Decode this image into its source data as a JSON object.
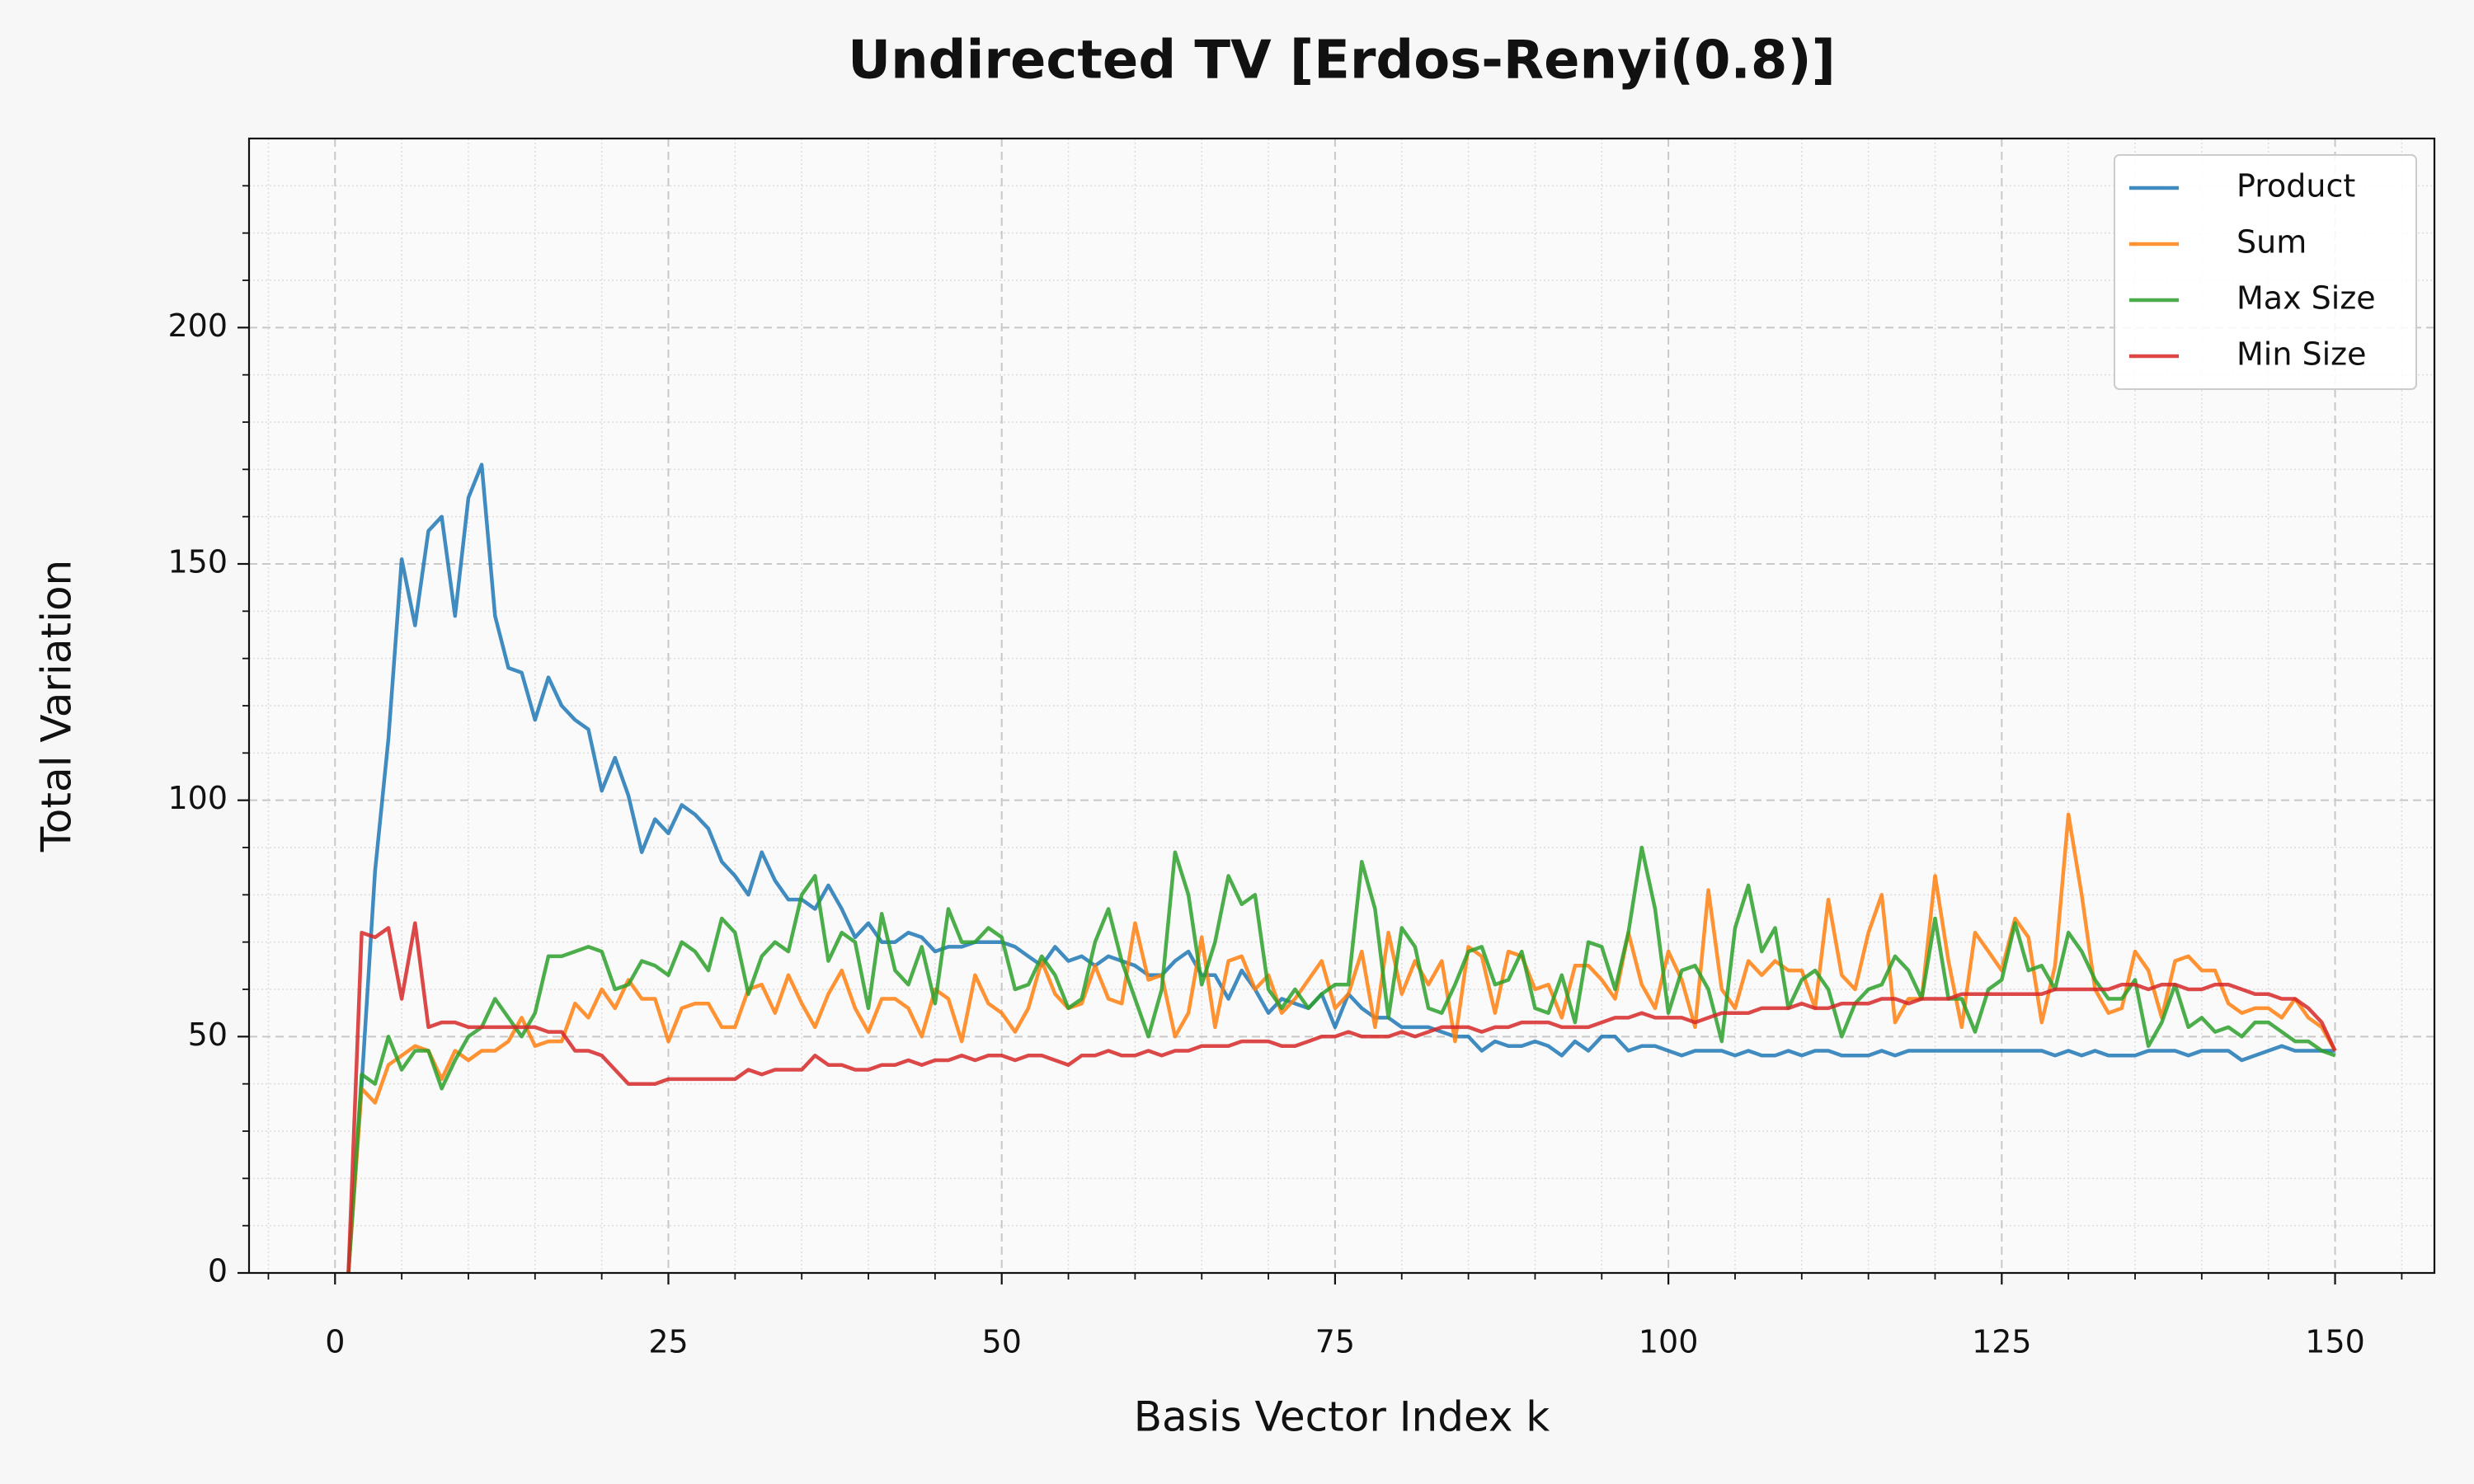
{
  "chart_data": {
    "type": "line",
    "title": "Undirected TV [Erdos-Renyi(0.8)]",
    "xlabel": "Basis Vector Index k",
    "ylabel": "Total Variation",
    "xlim": [
      -6.45,
      157.45
    ],
    "ylim": [
      0,
      240
    ],
    "xticks": [
      0,
      25,
      50,
      75,
      100,
      125,
      150
    ],
    "yticks": [
      0,
      50,
      100,
      150,
      200
    ],
    "xminorticks": [
      -5,
      5,
      10,
      15,
      20,
      30,
      35,
      40,
      45,
      55,
      60,
      65,
      70,
      80,
      85,
      90,
      95,
      105,
      110,
      115,
      120,
      130,
      135,
      140,
      145,
      155
    ],
    "yminorticks": [
      10,
      20,
      30,
      40,
      60,
      70,
      80,
      90,
      110,
      120,
      130,
      140,
      160,
      170,
      180,
      190,
      210,
      220,
      230
    ],
    "grid": true,
    "legend": "upper right",
    "x": [
      1,
      2,
      3,
      4,
      5,
      6,
      7,
      8,
      9,
      10,
      11,
      12,
      13,
      14,
      15,
      16,
      17,
      18,
      19,
      20,
      21,
      22,
      23,
      24,
      25,
      26,
      27,
      28,
      29,
      30,
      31,
      32,
      33,
      34,
      35,
      36,
      37,
      38,
      39,
      40,
      41,
      42,
      43,
      44,
      45,
      46,
      47,
      48,
      49,
      50,
      51,
      52,
      53,
      54,
      55,
      56,
      57,
      58,
      59,
      60,
      61,
      62,
      63,
      64,
      65,
      66,
      67,
      68,
      69,
      70,
      71,
      72,
      73,
      74,
      75,
      76,
      77,
      78,
      79,
      80,
      81,
      82,
      83,
      84,
      85,
      86,
      87,
      88,
      89,
      90,
      91,
      92,
      93,
      94,
      95,
      96,
      97,
      98,
      99,
      100,
      101,
      102,
      103,
      104,
      105,
      106,
      107,
      108,
      109,
      110,
      111,
      112,
      113,
      114,
      115,
      116,
      117,
      118,
      119,
      120,
      121,
      122,
      123,
      124,
      125,
      126,
      127,
      128,
      129,
      130,
      131,
      132,
      133,
      134,
      135,
      136,
      137,
      138,
      139,
      140,
      141,
      142,
      143,
      144,
      145,
      146,
      147,
      148,
      149,
      150
    ],
    "series": [
      {
        "name": "Product",
        "color": "#1f77b4",
        "values": [
          0,
          40,
          85,
          113,
          151,
          137,
          157,
          160,
          139,
          164,
          171,
          139,
          128,
          127,
          117,
          126,
          120,
          117,
          115,
          102,
          109,
          101,
          89,
          96,
          93,
          99,
          97,
          94,
          87,
          84,
          80,
          89,
          83,
          79,
          79,
          77,
          82,
          77,
          71,
          74,
          70,
          70,
          72,
          71,
          68,
          69,
          69,
          70,
          70,
          70,
          69,
          67,
          65,
          69,
          66,
          67,
          65,
          67,
          66,
          65,
          63,
          63,
          66,
          68,
          63,
          63,
          58,
          64,
          60,
          55,
          58,
          57,
          56,
          59,
          52,
          59,
          56,
          54,
          54,
          52,
          52,
          52,
          51,
          50,
          50,
          47,
          49,
          48,
          48,
          49,
          48,
          46,
          49,
          47,
          50,
          50,
          47,
          48,
          48,
          47,
          46,
          47,
          47,
          47,
          46,
          47,
          46,
          46,
          47,
          46,
          47,
          47,
          46,
          46,
          46,
          47,
          46,
          47,
          47,
          47,
          47,
          47,
          47,
          47,
          47,
          47,
          47,
          47,
          46,
          47,
          46,
          47,
          46,
          46,
          46,
          47,
          47,
          47,
          46,
          47,
          47,
          47,
          45,
          46,
          47,
          48,
          47,
          47,
          47,
          47
        ]
      },
      {
        "name": "Sum",
        "color": "#ff7f0e",
        "values": [
          0,
          39,
          36,
          44,
          46,
          48,
          47,
          41,
          47,
          45,
          47,
          47,
          49,
          54,
          48,
          49,
          49,
          57,
          54,
          60,
          56,
          62,
          58,
          58,
          49,
          56,
          57,
          57,
          52,
          52,
          60,
          61,
          55,
          63,
          57,
          52,
          59,
          64,
          56,
          51,
          58,
          58,
          56,
          50,
          60,
          58,
          49,
          63,
          57,
          55,
          51,
          56,
          66,
          59,
          56,
          57,
          65,
          58,
          57,
          74,
          62,
          63,
          50,
          55,
          71,
          52,
          66,
          67,
          60,
          63,
          55,
          58,
          62,
          66,
          56,
          59,
          68,
          52,
          72,
          59,
          66,
          61,
          66,
          49,
          69,
          67,
          55,
          68,
          67,
          60,
          61,
          54,
          65,
          65,
          62,
          58,
          72,
          61,
          56,
          68,
          62,
          52,
          81,
          60,
          56,
          66,
          63,
          66,
          64,
          64,
          56,
          79,
          63,
          60,
          72,
          80,
          53,
          58,
          58,
          84,
          66,
          52,
          72,
          68,
          64,
          75,
          71,
          53,
          65,
          97,
          80,
          60,
          55,
          56,
          68,
          64,
          54,
          66,
          67,
          64,
          64,
          57,
          55,
          56,
          56,
          54,
          58,
          54,
          52,
          47
        ]
      },
      {
        "name": "Max Size",
        "color": "#2ca02c",
        "values": [
          0,
          42,
          40,
          50,
          43,
          47,
          47,
          39,
          45,
          50,
          52,
          58,
          54,
          50,
          55,
          67,
          67,
          68,
          69,
          68,
          60,
          61,
          66,
          65,
          63,
          70,
          68,
          64,
          75,
          72,
          59,
          67,
          70,
          68,
          80,
          84,
          66,
          72,
          70,
          56,
          76,
          64,
          61,
          69,
          57,
          77,
          70,
          70,
          73,
          71,
          60,
          61,
          67,
          63,
          56,
          58,
          70,
          77,
          66,
          58,
          50,
          60,
          89,
          80,
          61,
          70,
          84,
          78,
          80,
          60,
          56,
          60,
          56,
          59,
          61,
          61,
          87,
          77,
          54,
          73,
          69,
          56,
          55,
          61,
          68,
          69,
          61,
          62,
          68,
          56,
          55,
          63,
          53,
          70,
          69,
          60,
          72,
          90,
          77,
          55,
          64,
          65,
          60,
          49,
          73,
          82,
          68,
          73,
          56,
          62,
          64,
          60,
          50,
          57,
          60,
          61,
          67,
          64,
          58,
          75,
          58,
          58,
          51,
          60,
          62,
          74,
          64,
          65,
          60,
          72,
          68,
          62,
          58,
          58,
          62,
          48,
          53,
          61,
          52,
          54,
          51,
          52,
          50,
          53,
          53,
          51,
          49,
          49,
          47,
          46
        ]
      },
      {
        "name": "Min Size",
        "color": "#d62728",
        "values": [
          0,
          72,
          71,
          73,
          58,
          74,
          52,
          53,
          53,
          52,
          52,
          52,
          52,
          52,
          52,
          51,
          51,
          47,
          47,
          46,
          43,
          40,
          40,
          40,
          41,
          41,
          41,
          41,
          41,
          41,
          43,
          42,
          43,
          43,
          43,
          46,
          44,
          44,
          43,
          43,
          44,
          44,
          45,
          44,
          45,
          45,
          46,
          45,
          46,
          46,
          45,
          46,
          46,
          45,
          44,
          46,
          46,
          47,
          46,
          46,
          47,
          46,
          47,
          47,
          48,
          48,
          48,
          49,
          49,
          49,
          48,
          48,
          49,
          50,
          50,
          51,
          50,
          50,
          50,
          51,
          50,
          51,
          52,
          52,
          52,
          51,
          52,
          52,
          53,
          53,
          53,
          52,
          52,
          52,
          53,
          54,
          54,
          55,
          54,
          54,
          54,
          53,
          54,
          55,
          55,
          55,
          56,
          56,
          56,
          57,
          56,
          56,
          57,
          57,
          57,
          58,
          58,
          57,
          58,
          58,
          58,
          59,
          59,
          59,
          59,
          59,
          59,
          59,
          60,
          60,
          60,
          60,
          60,
          61,
          61,
          60,
          61,
          61,
          60,
          60,
          61,
          61,
          60,
          59,
          59,
          58,
          58,
          56,
          53,
          47
        ]
      }
    ]
  }
}
